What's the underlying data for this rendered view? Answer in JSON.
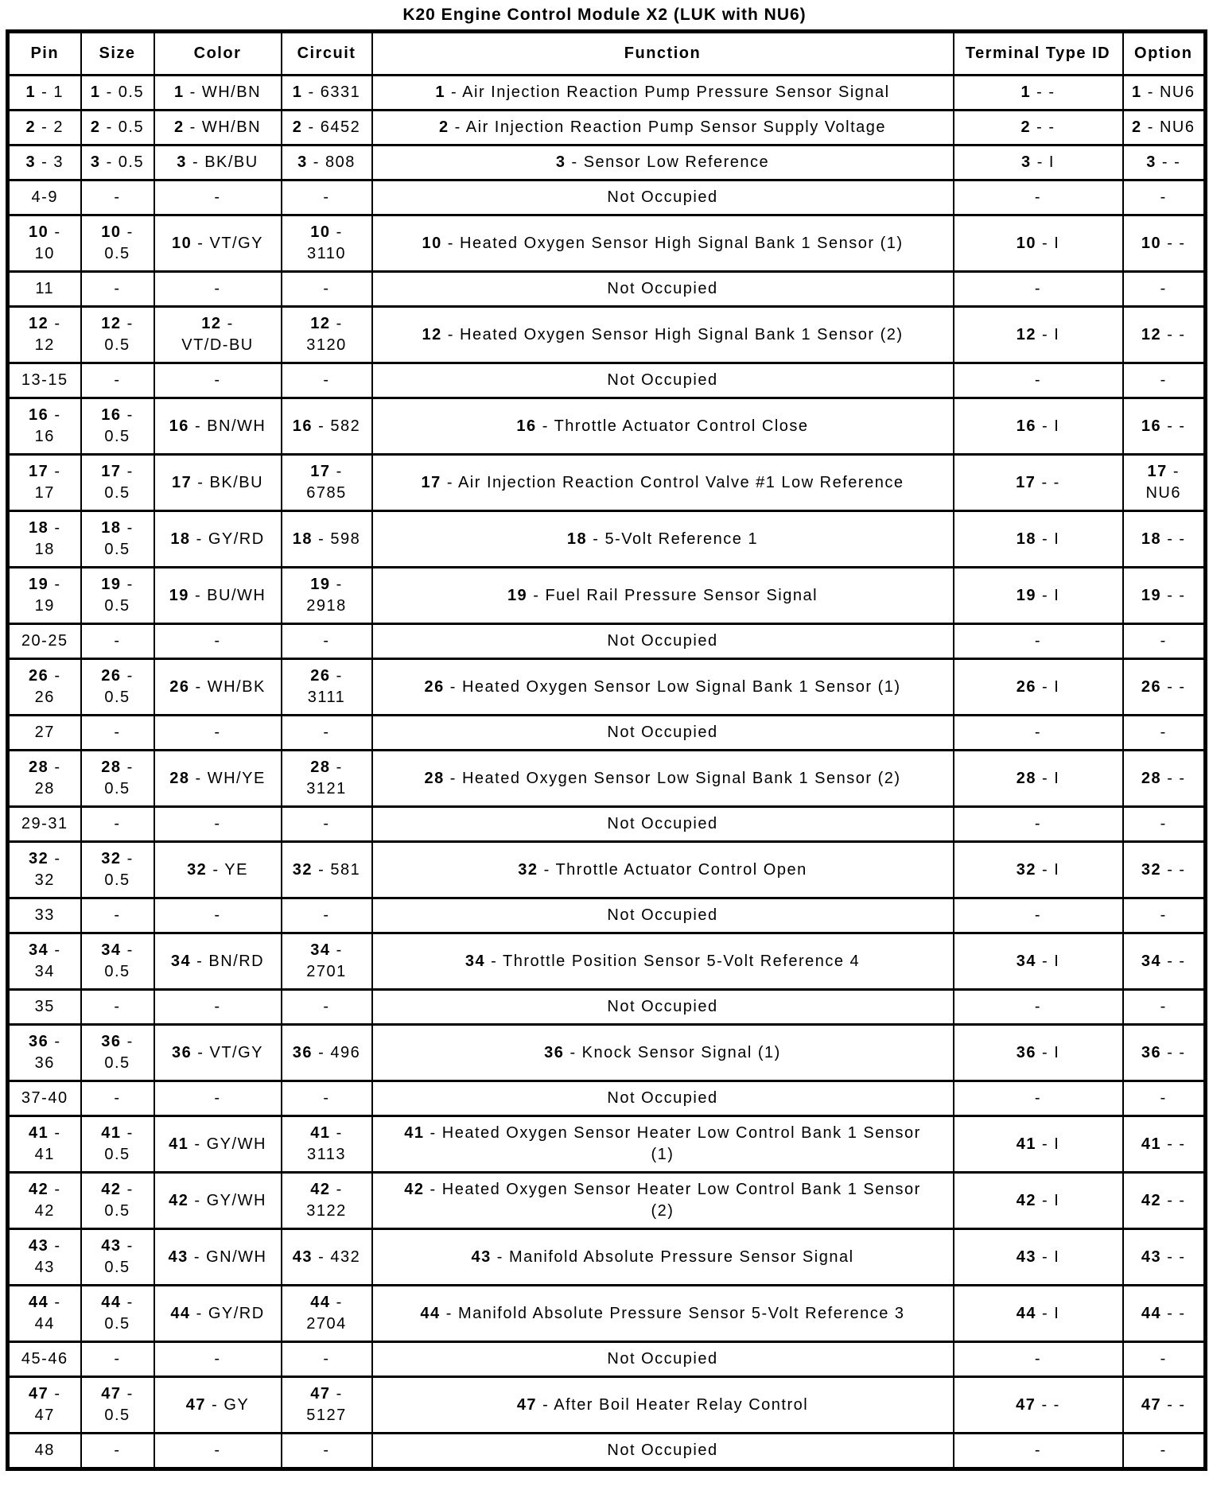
{
  "title": "K20 Engine Control Module X2 (LUK with NU6)",
  "colors": {
    "text": "#000000",
    "border": "#000000",
    "background": "#ffffff"
  },
  "table": {
    "headers": [
      "Pin",
      "Size",
      "Color",
      "Circuit",
      "Function",
      "Terminal Type ID",
      "Option"
    ],
    "separator": " - ",
    "not_occupied_label": "Not Occupied",
    "empty_value": "-",
    "rows": [
      {
        "pin": "1",
        "size": "0.5",
        "color": "WH/BN",
        "circuit": "6331",
        "function": "Air Injection Reaction Pump Pressure Sensor Signal",
        "terminal_type_id": "-",
        "option": "NU6"
      },
      {
        "pin": "2",
        "size": "0.5",
        "color": "WH/BN",
        "circuit": "6452",
        "function": "Air Injection Reaction Pump Sensor Supply Voltage",
        "terminal_type_id": "-",
        "option": "NU6"
      },
      {
        "pin": "3",
        "size": "0.5",
        "color": "BK/BU",
        "circuit": "808",
        "function": "Sensor Low Reference",
        "terminal_type_id": "I",
        "option": "-"
      },
      {
        "pin": "4-9",
        "not_occupied": true
      },
      {
        "pin": "10",
        "size": "0.5",
        "color": "VT/GY",
        "circuit": "3110",
        "function": "Heated Oxygen Sensor High Signal Bank 1 Sensor (1)",
        "terminal_type_id": "I",
        "option": "-"
      },
      {
        "pin": "11",
        "not_occupied": true
      },
      {
        "pin": "12",
        "size": "0.5",
        "color": "VT/D-BU",
        "circuit": "3120",
        "function": "Heated Oxygen Sensor High Signal Bank 1 Sensor (2)",
        "terminal_type_id": "I",
        "option": "-"
      },
      {
        "pin": "13-15",
        "not_occupied": true
      },
      {
        "pin": "16",
        "size": "0.5",
        "color": "BN/WH",
        "circuit": "582",
        "function": "Throttle Actuator Control Close",
        "terminal_type_id": "I",
        "option": "-"
      },
      {
        "pin": "17",
        "size": "0.5",
        "color": "BK/BU",
        "circuit": "6785",
        "function": "Air Injection Reaction Control Valve #1 Low Reference",
        "terminal_type_id": "-",
        "option": "NU6"
      },
      {
        "pin": "18",
        "size": "0.5",
        "color": "GY/RD",
        "circuit": "598",
        "function": "5-Volt Reference 1",
        "terminal_type_id": "I",
        "option": "-"
      },
      {
        "pin": "19",
        "size": "0.5",
        "color": "BU/WH",
        "circuit": "2918",
        "function": "Fuel Rail Pressure Sensor Signal",
        "terminal_type_id": "I",
        "option": "-"
      },
      {
        "pin": "20-25",
        "not_occupied": true
      },
      {
        "pin": "26",
        "size": "0.5",
        "color": "WH/BK",
        "circuit": "3111",
        "function": "Heated Oxygen Sensor Low Signal Bank 1 Sensor (1)",
        "terminal_type_id": "I",
        "option": "-"
      },
      {
        "pin": "27",
        "not_occupied": true
      },
      {
        "pin": "28",
        "size": "0.5",
        "color": "WH/YE",
        "circuit": "3121",
        "function": "Heated Oxygen Sensor Low Signal Bank 1 Sensor (2)",
        "terminal_type_id": "I",
        "option": "-"
      },
      {
        "pin": "29-31",
        "not_occupied": true
      },
      {
        "pin": "32",
        "size": "0.5",
        "color": "YE",
        "circuit": "581",
        "function": "Throttle Actuator Control Open",
        "terminal_type_id": "I",
        "option": "-"
      },
      {
        "pin": "33",
        "not_occupied": true
      },
      {
        "pin": "34",
        "size": "0.5",
        "color": "BN/RD",
        "circuit": "2701",
        "function": "Throttle Position Sensor 5-Volt Reference 4",
        "terminal_type_id": "I",
        "option": "-"
      },
      {
        "pin": "35",
        "not_occupied": true
      },
      {
        "pin": "36",
        "size": "0.5",
        "color": "VT/GY",
        "circuit": "496",
        "function": "Knock Sensor Signal (1)",
        "terminal_type_id": "I",
        "option": "-"
      },
      {
        "pin": "37-40",
        "not_occupied": true
      },
      {
        "pin": "41",
        "size": "0.5",
        "color": "GY/WH",
        "circuit": "3113",
        "function": "Heated Oxygen Sensor Heater Low Control Bank 1 Sensor (1)",
        "terminal_type_id": "I",
        "option": "-"
      },
      {
        "pin": "42",
        "size": "0.5",
        "color": "GY/WH",
        "circuit": "3122",
        "function": "Heated Oxygen Sensor Heater Low Control Bank 1 Sensor (2)",
        "terminal_type_id": "I",
        "option": "-"
      },
      {
        "pin": "43",
        "size": "0.5",
        "color": "GN/WH",
        "circuit": "432",
        "function": "Manifold Absolute Pressure Sensor Signal",
        "terminal_type_id": "I",
        "option": "-"
      },
      {
        "pin": "44",
        "size": "0.5",
        "color": "GY/RD",
        "circuit": "2704",
        "function": "Manifold Absolute Pressure Sensor 5-Volt Reference 3",
        "terminal_type_id": "I",
        "option": "-"
      },
      {
        "pin": "45-46",
        "not_occupied": true
      },
      {
        "pin": "47",
        "size": "0.5",
        "color": "GY",
        "circuit": "5127",
        "function": "After Boil Heater Relay Control",
        "terminal_type_id": "-",
        "option": "-"
      },
      {
        "pin": "48",
        "not_occupied": true
      }
    ]
  }
}
